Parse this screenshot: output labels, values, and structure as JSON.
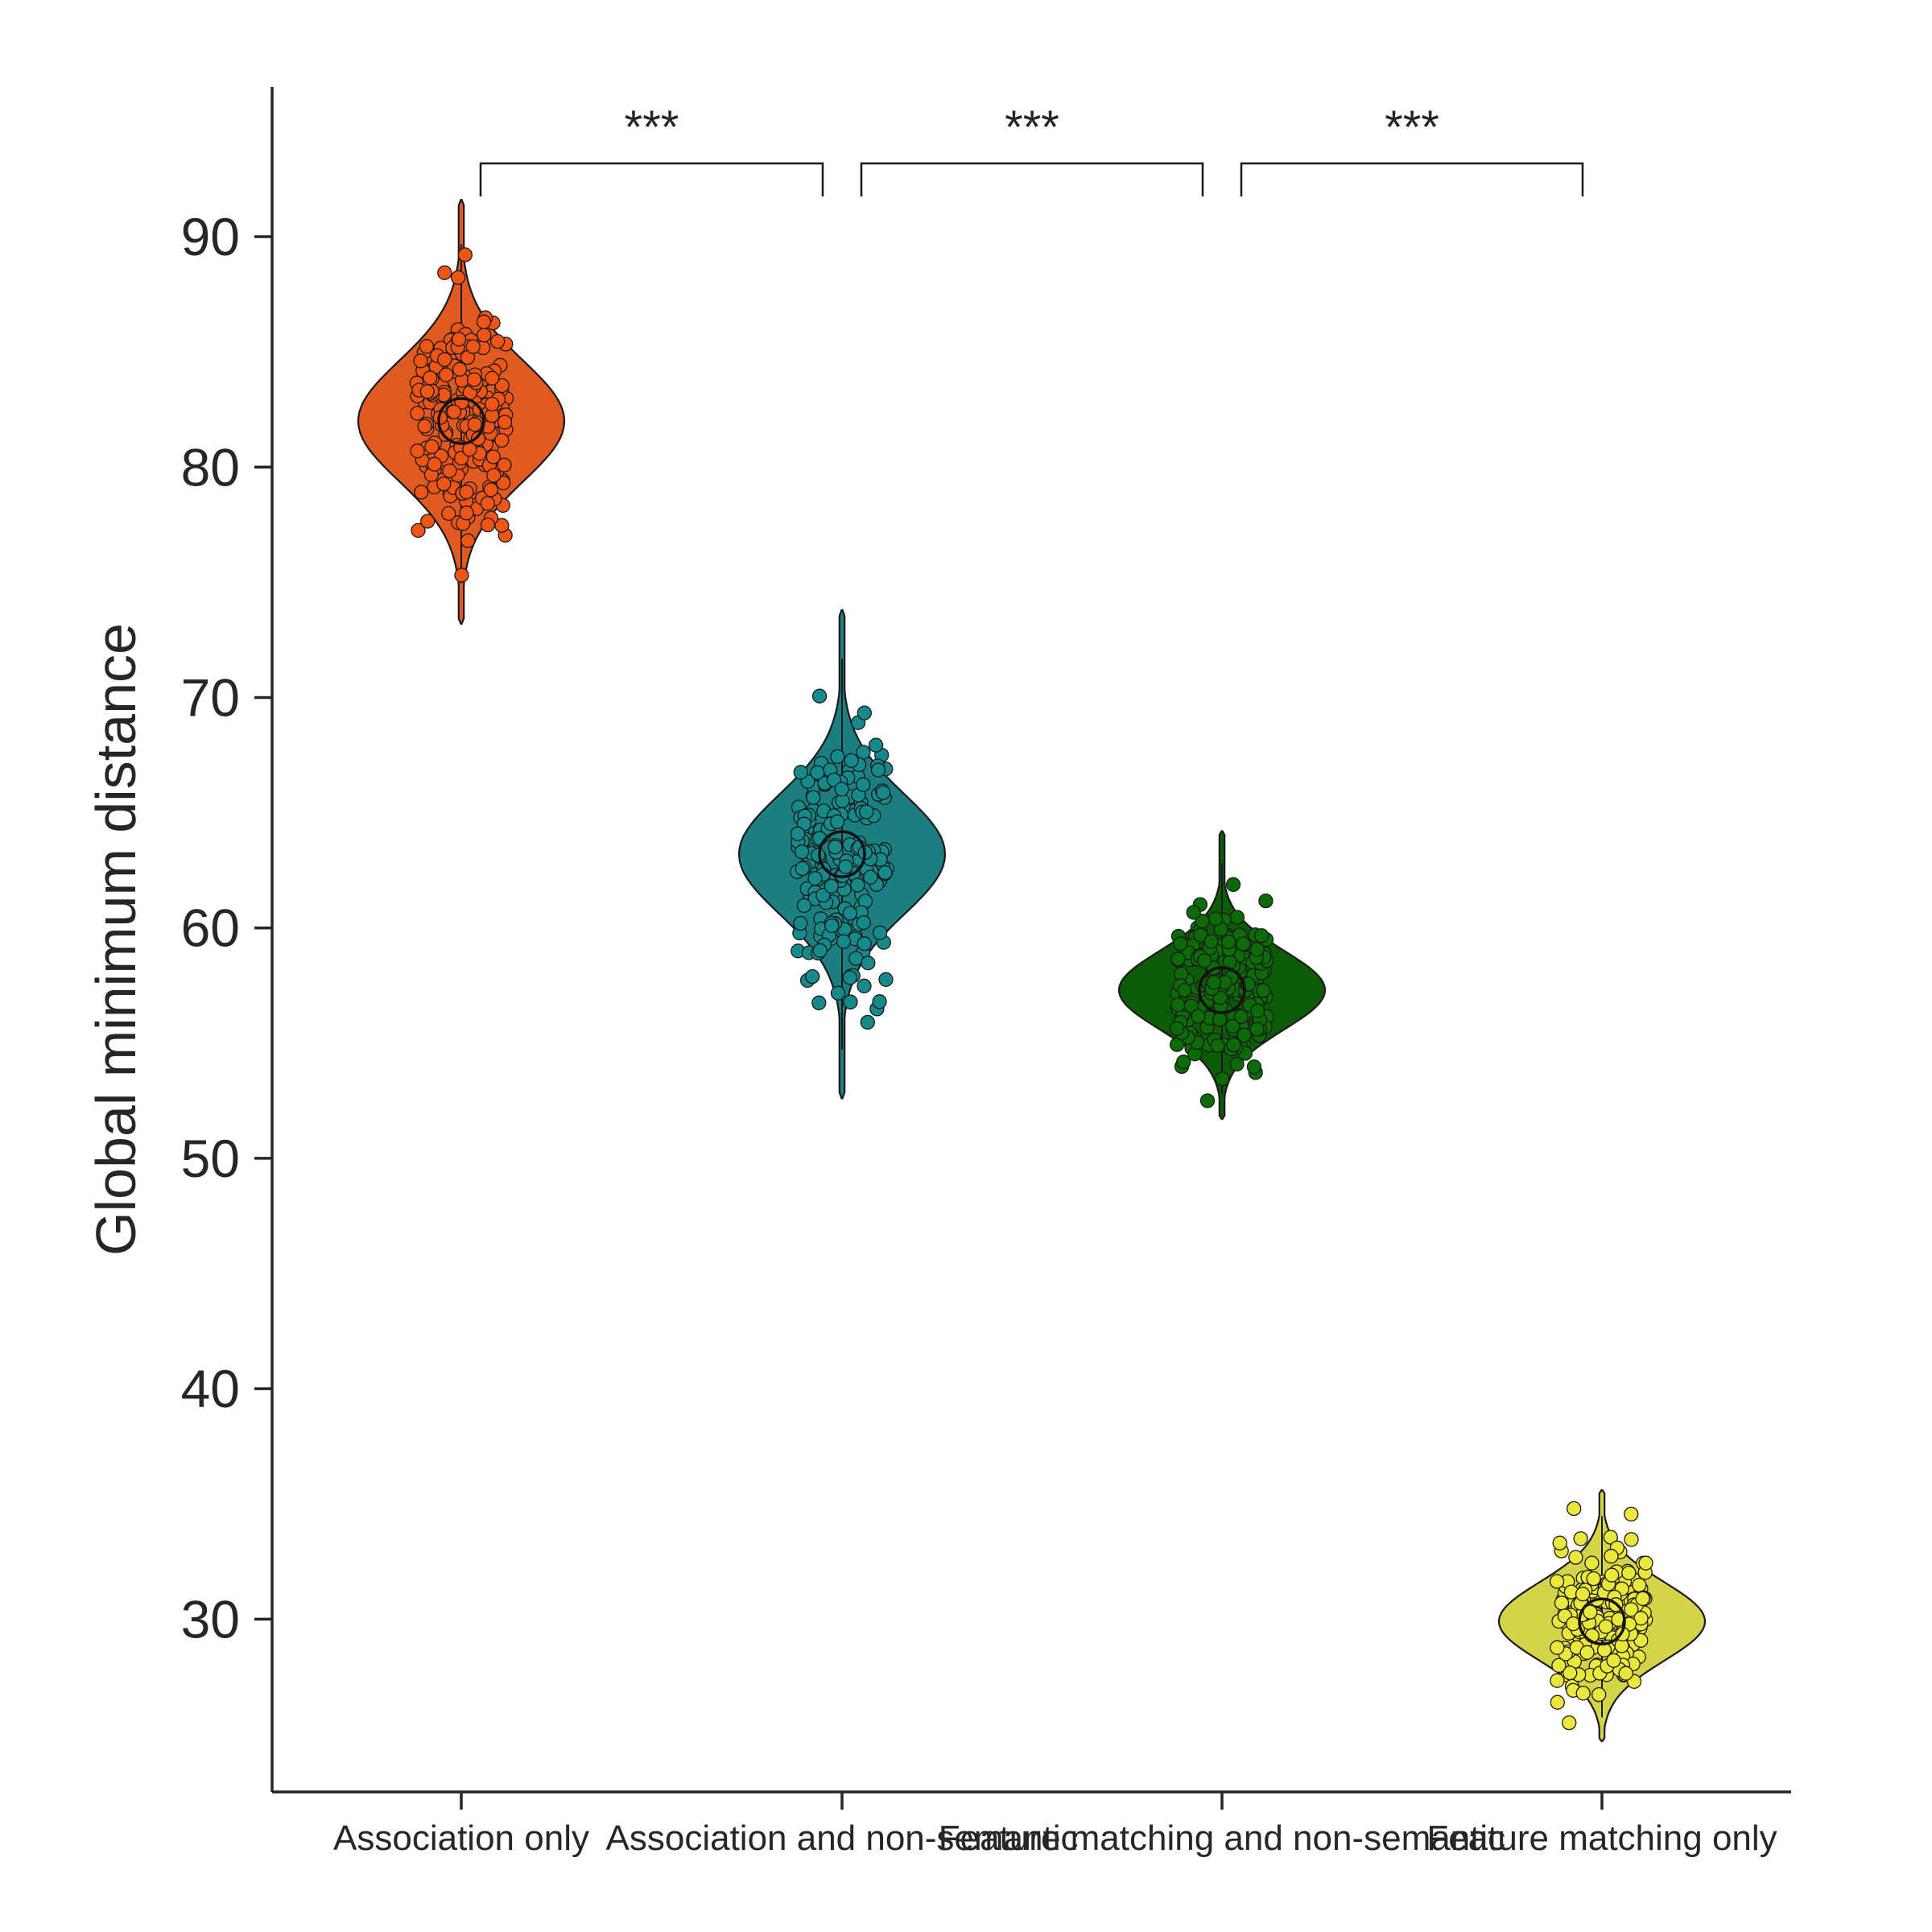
{
  "chart_data": {
    "type": "violin",
    "title": "",
    "xlabel": "",
    "ylabel": "Global minimum distance",
    "ylim": [
      22.5,
      96.5
    ],
    "yticks": [
      30,
      40,
      50,
      60,
      70,
      80,
      90
    ],
    "grid": false,
    "legend": "none",
    "categories": [
      "Association only",
      "Association and non-semantic",
      "Feature matching and non-semantic",
      "Feature matching only"
    ],
    "groups": [
      {
        "name": "Association only",
        "color": "#e05a22",
        "point_color": "#f05516",
        "mean": 82.0,
        "sd": 2.6,
        "min": 73.2,
        "max": 91.6,
        "n": 200
      },
      {
        "name": "Association and non-semantic",
        "color": "#1b7f80",
        "point_color": "#16898a",
        "mean": 63.2,
        "sd": 2.6,
        "min": 52.6,
        "max": 73.8,
        "n": 200
      },
      {
        "name": "Feature matching and non-semantic",
        "color": "#0c5b06",
        "point_color": "#0b6b06",
        "mean": 57.3,
        "sd": 1.7,
        "min": 51.7,
        "max": 64.2,
        "n": 200
      },
      {
        "name": "Feature matching only",
        "color": "#d3d44a",
        "point_color": "#ece83b",
        "mean": 29.9,
        "sd": 1.7,
        "min": 24.7,
        "max": 35.6,
        "n": 200
      }
    ],
    "significance": [
      {
        "pair": [
          0,
          1
        ],
        "label": "***"
      },
      {
        "pair": [
          1,
          2
        ],
        "label": "***"
      },
      {
        "pair": [
          2,
          3
        ],
        "label": "***"
      }
    ]
  }
}
